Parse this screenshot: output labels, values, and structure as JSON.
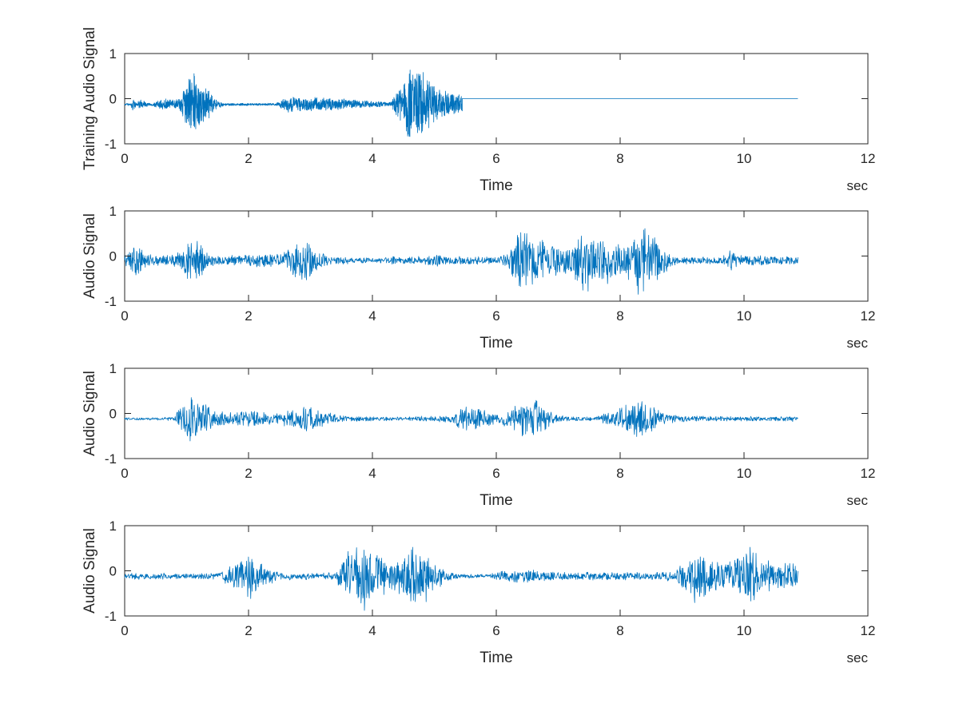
{
  "figure": {
    "background": "#ffffff"
  },
  "style": {
    "line_color": "#0072BD",
    "axis_color": "#262626"
  },
  "chart_data": [
    {
      "type": "line",
      "title": "",
      "xlabel": "Time",
      "xunit": "sec",
      "ylabel": "Training Audio Signal",
      "xlim": [
        0,
        12
      ],
      "ylim": [
        -1,
        1
      ],
      "xticks": [
        0,
        2,
        4,
        6,
        8,
        10,
        12
      ],
      "yticks": [
        -1,
        0,
        1
      ],
      "grid": false,
      "series": [
        {
          "signal_end": 10.87,
          "baseline": [
            [
              0,
              -0.13
            ],
            [
              0.55,
              -0.13
            ],
            [
              0.6,
              -0.12
            ],
            [
              1.5,
              -0.13
            ],
            [
              4.4,
              -0.12
            ],
            [
              5.45,
              -0.12
            ],
            [
              5.46,
              0.0
            ],
            [
              10.87,
              0.0
            ]
          ],
          "envelope": [
            [
              0,
              0.02
            ],
            [
              0.1,
              0.05
            ],
            [
              0.13,
              0.15
            ],
            [
              0.2,
              0.05
            ],
            [
              0.25,
              0.14
            ],
            [
              0.35,
              0.06
            ],
            [
              0.45,
              0.03
            ],
            [
              0.55,
              0.1
            ],
            [
              0.6,
              0.15
            ],
            [
              0.8,
              0.12
            ],
            [
              0.9,
              0.15
            ],
            [
              1.0,
              0.6
            ],
            [
              1.1,
              0.8
            ],
            [
              1.2,
              0.6
            ],
            [
              1.35,
              0.35
            ],
            [
              1.45,
              0.15
            ],
            [
              1.6,
              0.03
            ],
            [
              2.45,
              0.03
            ],
            [
              2.55,
              0.12
            ],
            [
              2.65,
              0.2
            ],
            [
              2.9,
              0.15
            ],
            [
              3.0,
              0.18
            ],
            [
              3.3,
              0.15
            ],
            [
              3.6,
              0.12
            ],
            [
              3.9,
              0.08
            ],
            [
              4.3,
              0.06
            ],
            [
              4.45,
              0.5
            ],
            [
              4.6,
              0.85
            ],
            [
              4.75,
              0.95
            ],
            [
              4.85,
              0.75
            ],
            [
              5.0,
              0.45
            ],
            [
              5.2,
              0.3
            ],
            [
              5.4,
              0.25
            ],
            [
              5.45,
              0.2
            ]
          ],
          "lines": [
            [
              0,
              -0.13
            ],
            [
              5.45,
              -0.12
            ],
            [
              5.46,
              0.0
            ],
            [
              10.87,
              0.0
            ]
          ]
        }
      ]
    },
    {
      "type": "line",
      "title": "",
      "xlabel": "Time",
      "xunit": "sec",
      "ylabel": "Audio Signal",
      "xlim": [
        0,
        12
      ],
      "ylim": [
        -1,
        1
      ],
      "xticks": [
        0,
        2,
        4,
        6,
        8,
        10,
        12
      ],
      "yticks": [
        -1,
        0,
        1
      ],
      "grid": false,
      "series": [
        {
          "signal_end": 10.87,
          "baseline": [
            [
              0,
              -0.1
            ],
            [
              10.87,
              -0.1
            ]
          ],
          "envelope": [
            [
              0,
              0.15
            ],
            [
              0.1,
              0.3
            ],
            [
              0.2,
              0.45
            ],
            [
              0.35,
              0.15
            ],
            [
              0.6,
              0.12
            ],
            [
              0.9,
              0.2
            ],
            [
              1.05,
              0.55
            ],
            [
              1.2,
              0.5
            ],
            [
              1.35,
              0.15
            ],
            [
              1.6,
              0.12
            ],
            [
              1.9,
              0.12
            ],
            [
              2.2,
              0.2
            ],
            [
              2.5,
              0.15
            ],
            [
              2.8,
              0.5
            ],
            [
              2.95,
              0.6
            ],
            [
              3.1,
              0.25
            ],
            [
              3.3,
              0.1
            ],
            [
              3.6,
              0.08
            ],
            [
              4.0,
              0.06
            ],
            [
              4.3,
              0.1
            ],
            [
              4.5,
              0.08
            ],
            [
              4.8,
              0.1
            ],
            [
              5.0,
              0.15
            ],
            [
              5.2,
              0.12
            ],
            [
              5.5,
              0.1
            ],
            [
              6.0,
              0.08
            ],
            [
              6.2,
              0.2
            ],
            [
              6.35,
              0.85
            ],
            [
              6.5,
              0.7
            ],
            [
              6.7,
              0.5
            ],
            [
              7.0,
              0.35
            ],
            [
              7.25,
              0.35
            ],
            [
              7.4,
              0.85
            ],
            [
              7.55,
              0.6
            ],
            [
              7.8,
              0.55
            ],
            [
              7.95,
              0.4
            ],
            [
              8.15,
              0.55
            ],
            [
              8.35,
              0.95
            ],
            [
              8.5,
              0.7
            ],
            [
              8.65,
              0.4
            ],
            [
              8.9,
              0.1
            ],
            [
              9.5,
              0.08
            ],
            [
              9.65,
              0.12
            ],
            [
              9.8,
              0.28
            ],
            [
              9.95,
              0.15
            ],
            [
              10.3,
              0.12
            ],
            [
              10.6,
              0.1
            ],
            [
              10.87,
              0.12
            ]
          ]
        }
      ]
    },
    {
      "type": "line",
      "title": "",
      "xlabel": "Time",
      "xunit": "sec",
      "ylabel": "Audio Signal",
      "xlim": [
        0,
        12
      ],
      "ylim": [
        -1,
        1
      ],
      "xticks": [
        0,
        2,
        4,
        6,
        8,
        10,
        12
      ],
      "yticks": [
        -1,
        0,
        1
      ],
      "grid": false,
      "series": [
        {
          "signal_end": 10.87,
          "baseline": [
            [
              0,
              -0.12
            ],
            [
              10.87,
              -0.12
            ]
          ],
          "envelope": [
            [
              0,
              0.03
            ],
            [
              0.8,
              0.04
            ],
            [
              0.9,
              0.3
            ],
            [
              1.1,
              0.6
            ],
            [
              1.25,
              0.45
            ],
            [
              1.5,
              0.2
            ],
            [
              1.7,
              0.15
            ],
            [
              2.0,
              0.2
            ],
            [
              2.3,
              0.15
            ],
            [
              2.5,
              0.12
            ],
            [
              2.8,
              0.3
            ],
            [
              2.95,
              0.35
            ],
            [
              3.1,
              0.2
            ],
            [
              3.4,
              0.12
            ],
            [
              3.6,
              0.06
            ],
            [
              4.2,
              0.05
            ],
            [
              4.6,
              0.05
            ],
            [
              5.0,
              0.07
            ],
            [
              5.3,
              0.1
            ],
            [
              5.5,
              0.35
            ],
            [
              5.7,
              0.3
            ],
            [
              5.9,
              0.15
            ],
            [
              6.1,
              0.15
            ],
            [
              6.4,
              0.4
            ],
            [
              6.6,
              0.5
            ],
            [
              6.75,
              0.3
            ],
            [
              6.95,
              0.1
            ],
            [
              7.2,
              0.05
            ],
            [
              7.6,
              0.05
            ],
            [
              7.9,
              0.2
            ],
            [
              8.2,
              0.4
            ],
            [
              8.35,
              0.55
            ],
            [
              8.5,
              0.4
            ],
            [
              8.75,
              0.15
            ],
            [
              9.0,
              0.08
            ],
            [
              9.5,
              0.06
            ],
            [
              10.87,
              0.06
            ]
          ]
        }
      ]
    },
    {
      "type": "line",
      "title": "",
      "xlabel": "Time",
      "xunit": "sec",
      "ylabel": "Audio Signal",
      "xlim": [
        0,
        12
      ],
      "ylim": [
        -1,
        1
      ],
      "xticks": [
        0,
        2,
        4,
        6,
        8,
        10,
        12
      ],
      "yticks": [
        -1,
        0,
        1
      ],
      "grid": false,
      "series": [
        {
          "signal_end": 10.87,
          "baseline": [
            [
              0,
              -0.12
            ],
            [
              10.87,
              -0.12
            ]
          ],
          "envelope": [
            [
              0,
              0.06
            ],
            [
              0.2,
              0.08
            ],
            [
              0.6,
              0.08
            ],
            [
              1.0,
              0.06
            ],
            [
              1.5,
              0.08
            ],
            [
              1.75,
              0.3
            ],
            [
              1.9,
              0.55
            ],
            [
              2.05,
              0.6
            ],
            [
              2.2,
              0.3
            ],
            [
              2.5,
              0.1
            ],
            [
              3.0,
              0.08
            ],
            [
              3.4,
              0.1
            ],
            [
              3.6,
              0.6
            ],
            [
              3.8,
              0.85
            ],
            [
              3.95,
              0.7
            ],
            [
              4.1,
              0.5
            ],
            [
              4.3,
              0.3
            ],
            [
              4.5,
              0.45
            ],
            [
              4.65,
              0.8
            ],
            [
              4.8,
              0.7
            ],
            [
              4.95,
              0.5
            ],
            [
              5.15,
              0.15
            ],
            [
              5.4,
              0.05
            ],
            [
              5.8,
              0.05
            ],
            [
              6.1,
              0.12
            ],
            [
              6.3,
              0.15
            ],
            [
              6.6,
              0.15
            ],
            [
              7.0,
              0.1
            ],
            [
              7.5,
              0.1
            ],
            [
              8.0,
              0.1
            ],
            [
              8.5,
              0.08
            ],
            [
              8.9,
              0.12
            ],
            [
              9.05,
              0.45
            ],
            [
              9.25,
              0.65
            ],
            [
              9.45,
              0.4
            ],
            [
              9.7,
              0.3
            ],
            [
              9.85,
              0.45
            ],
            [
              10.1,
              0.75
            ],
            [
              10.25,
              0.45
            ],
            [
              10.5,
              0.3
            ],
            [
              10.7,
              0.35
            ],
            [
              10.87,
              0.3
            ]
          ]
        }
      ]
    }
  ]
}
